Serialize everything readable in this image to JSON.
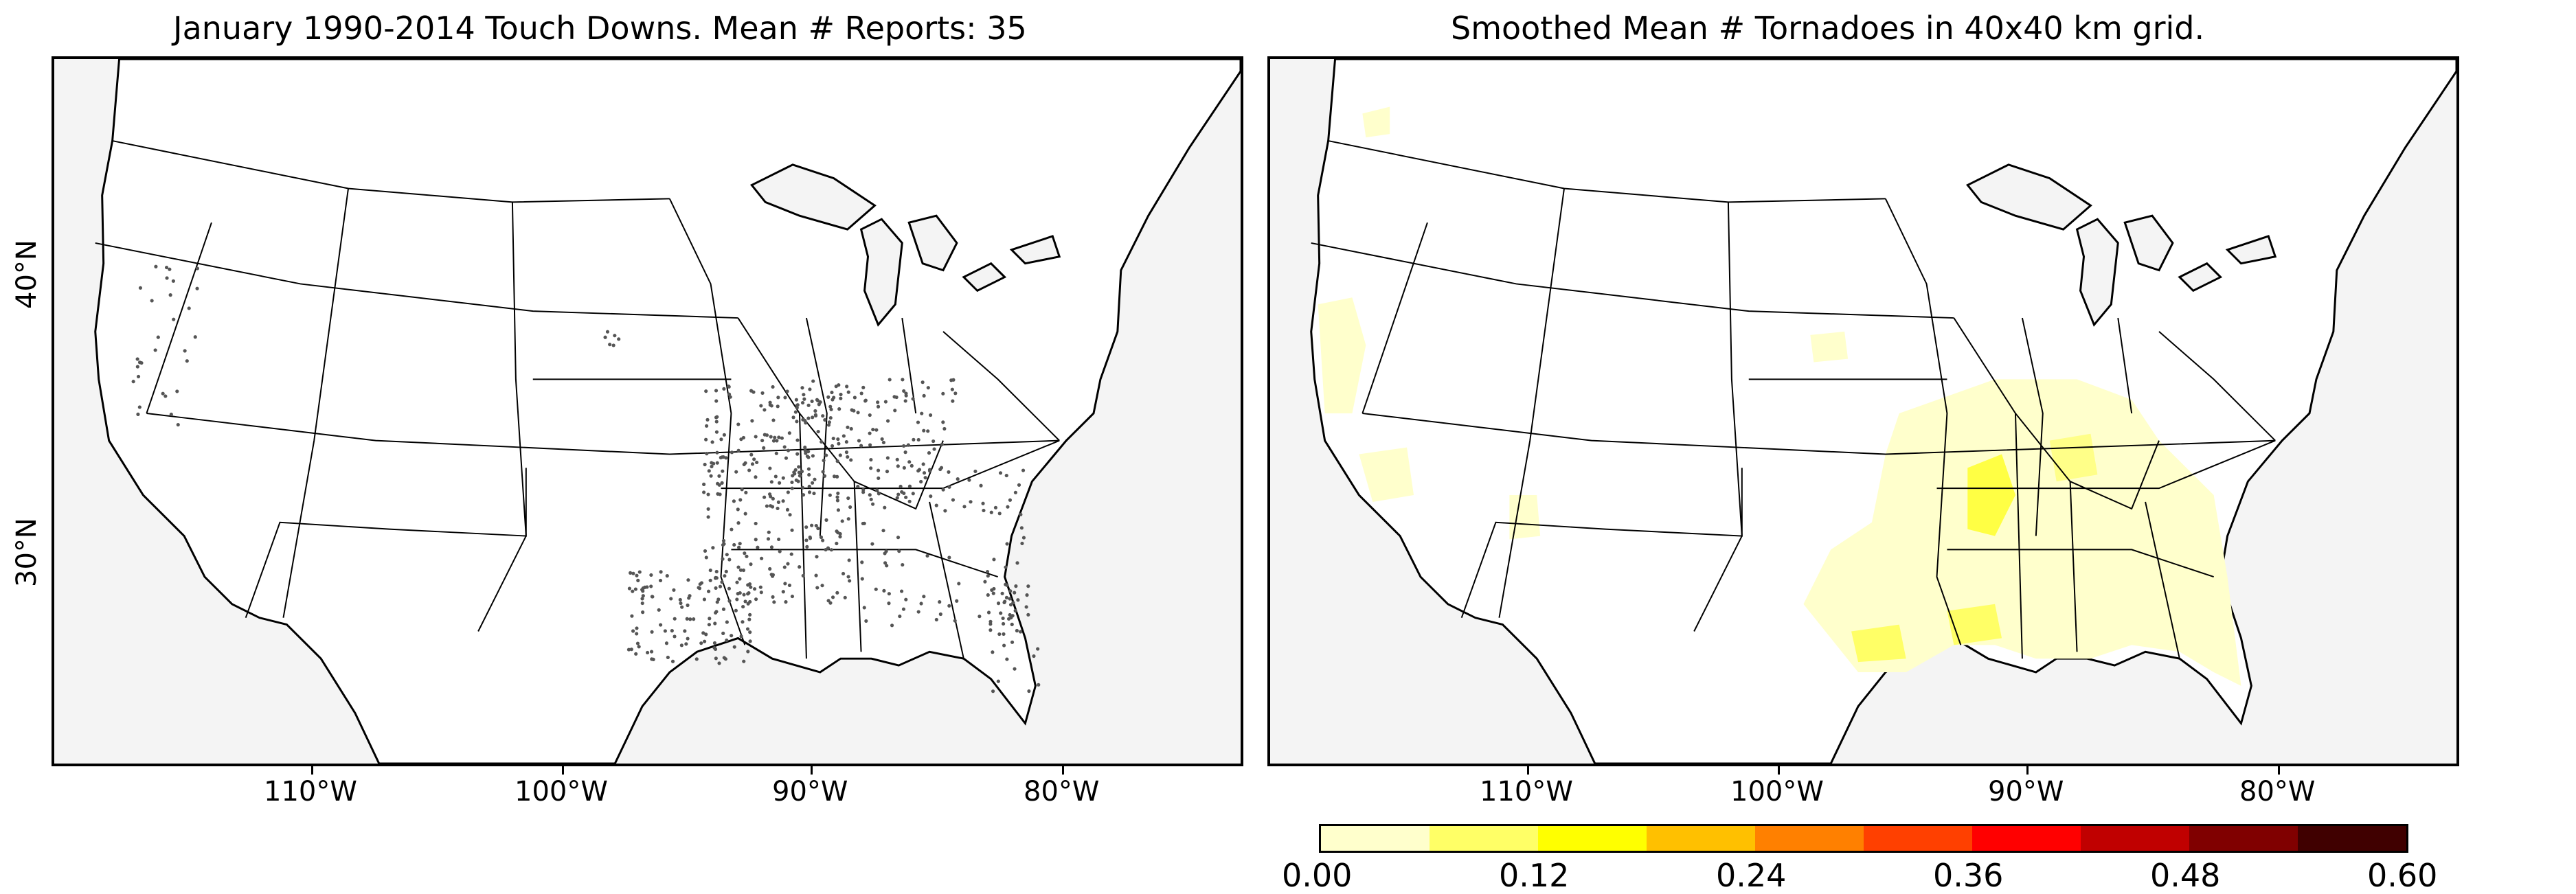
{
  "left_panel": {
    "title": "January 1990-2014 Touch Downs. Mean # Reports: 35"
  },
  "right_panel": {
    "title": "Smoothed Mean # Tornadoes in 40x40 km grid."
  },
  "longitude_labels": [
    "110°W",
    "100°W",
    "90°W",
    "80°W"
  ],
  "latitude_labels": [
    "40°N",
    "30°N"
  ],
  "colorbar": {
    "tick_labels": [
      "0.00",
      "0.12",
      "0.24",
      "0.36",
      "0.48",
      "0.60"
    ],
    "colors": [
      "#ffffcc",
      "#ffff66",
      "#ffff00",
      "#ffc000",
      "#ff8000",
      "#ff4000",
      "#ff0000",
      "#c00000",
      "#800000",
      "#400000"
    ]
  },
  "map_colors": {
    "land": "#ffffff",
    "water": "#f4f4f4",
    "borders": "#000000",
    "report_dots": "#555555",
    "density_low": "#ffffcc",
    "density_mid": "#ffff99",
    "density_high": "#ffff44"
  }
}
